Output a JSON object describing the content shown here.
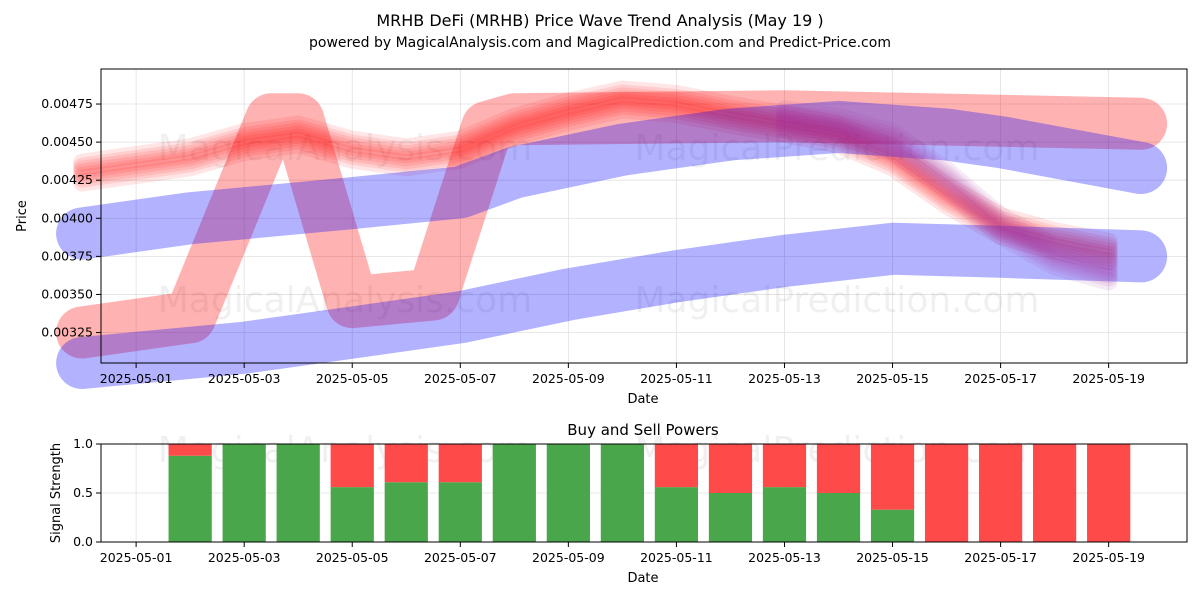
{
  "title": "MRHB DeFi (MRHB) Price Wave Trend Analysis (May 19 )",
  "subtitle": "powered by MagicalAnalysis.com and MagicalPrediction.com and Predict-Price.com",
  "watermarks": [
    "MagicalAnalysis.com",
    "MagicalPrediction.com"
  ],
  "colors": {
    "red": "#ff0000",
    "blue": "#0000ff",
    "buy": "#4aa64a",
    "sell": "#ff4a4a"
  },
  "chart_data": [
    {
      "type": "line",
      "xlabel": "Date",
      "ylabel": "Price",
      "xlim": [
        "2025-04-30",
        "2025-05-20"
      ],
      "ylim": [
        0.00305,
        0.00498
      ],
      "x_ticks": [
        "2025-05-01",
        "2025-05-03",
        "2025-05-05",
        "2025-05-07",
        "2025-05-09",
        "2025-05-11",
        "2025-05-13",
        "2025-05-15",
        "2025-05-17",
        "2025-05-19"
      ],
      "y_ticks": [
        "0.00325",
        "0.00350",
        "0.00375",
        "0.00400",
        "0.00425",
        "0.00450",
        "0.00475"
      ],
      "grid": true,
      "series": [
        {
          "color": "#ff0000",
          "style": "wave",
          "x": [
            "2025-04-30",
            "2025-05-02",
            "2025-05-03",
            "2025-05-04",
            "2025-05-05",
            "2025-05-06",
            "2025-05-07",
            "2025-05-08",
            "2025-05-09",
            "2025-05-10",
            "2025-05-11",
            "2025-05-12",
            "2025-05-13",
            "2025-05-14",
            "2025-05-15",
            "2025-05-16",
            "2025-05-17",
            "2025-05-18",
            "2025-05-19"
          ],
          "y": [
            0.0043,
            0.0044,
            0.0045,
            0.00455,
            0.00445,
            0.0044,
            0.00445,
            0.0046,
            0.0047,
            0.00478,
            0.00475,
            0.00468,
            0.00462,
            0.00455,
            0.0044,
            0.00415,
            0.00395,
            0.00385,
            0.00378
          ]
        },
        {
          "color": "#ff0000",
          "style": "band",
          "x": [
            "2025-04-30",
            "2025-05-02",
            "2025-05-03.5",
            "2025-05-04",
            "2025-05-05",
            "2025-05-06.5",
            "2025-05-07.5",
            "2025-05-08",
            "2025-05-13",
            "2025-05-19.6"
          ],
          "y": [
            0.00325,
            0.00335,
            0.00465,
            0.00465,
            0.00345,
            0.0035,
            0.0046,
            0.00465,
            0.00467,
            0.00462
          ]
        },
        {
          "color": "#0000ff",
          "style": "band",
          "x": [
            "2025-04-30",
            "2025-05-02",
            "2025-05-05",
            "2025-05-07",
            "2025-05-08",
            "2025-05-10",
            "2025-05-12",
            "2025-05-14",
            "2025-05-16",
            "2025-05-17",
            "2025-05-19.6"
          ],
          "y": [
            0.0039,
            0.004,
            0.0041,
            0.00417,
            0.0043,
            0.00445,
            0.00455,
            0.0046,
            0.00455,
            0.0045,
            0.00433
          ]
        },
        {
          "color": "#0000ff",
          "style": "band",
          "x": [
            "2025-04-30",
            "2025-05-03",
            "2025-05-07",
            "2025-05-09",
            "2025-05-11",
            "2025-05-13",
            "2025-05-15",
            "2025-05-17",
            "2025-05-19.6"
          ],
          "y": [
            0.00305,
            0.00315,
            0.00335,
            0.0035,
            0.00362,
            0.00372,
            0.0038,
            0.00378,
            0.00375
          ]
        },
        {
          "color": "#aa3399",
          "style": "wave",
          "x": [
            "2025-05-13",
            "2025-05-14",
            "2025-05-15",
            "2025-05-16",
            "2025-05-17",
            "2025-05-18",
            "2025-05-19"
          ],
          "y": [
            0.00465,
            0.0046,
            0.0045,
            0.00425,
            0.00395,
            0.00375,
            0.00365
          ]
        }
      ]
    },
    {
      "type": "bar",
      "title": "Buy and Sell Powers",
      "xlabel": "Date",
      "ylabel": "Signal Strength",
      "ylim": [
        0,
        1.0
      ],
      "y_ticks": [
        "0.0",
        "0.5",
        "1.0"
      ],
      "x_ticks": [
        "2025-05-01",
        "2025-05-03",
        "2025-05-05",
        "2025-05-07",
        "2025-05-09",
        "2025-05-11",
        "2025-05-13",
        "2025-05-15",
        "2025-05-17",
        "2025-05-19"
      ],
      "categories": [
        "2025-05-02",
        "2025-05-03",
        "2025-05-04",
        "2025-05-05",
        "2025-05-06",
        "2025-05-07",
        "2025-05-08",
        "2025-05-09",
        "2025-05-10",
        "2025-05-11",
        "2025-05-12",
        "2025-05-13",
        "2025-05-14",
        "2025-05-15",
        "2025-05-16",
        "2025-05-17",
        "2025-05-18",
        "2025-05-19"
      ],
      "series": [
        {
          "name": "Buy",
          "color": "#4aa64a",
          "values": [
            0.88,
            1.0,
            1.0,
            0.56,
            0.61,
            0.61,
            1.0,
            1.0,
            1.0,
            0.56,
            0.5,
            0.56,
            0.5,
            0.33,
            0.0,
            0.0,
            0.0,
            0.0
          ]
        },
        {
          "name": "Sell",
          "color": "#ff4a4a",
          "values": [
            0.12,
            0.0,
            0.0,
            0.44,
            0.39,
            0.39,
            0.0,
            0.0,
            0.0,
            0.44,
            0.5,
            0.44,
            0.5,
            0.67,
            1.0,
            1.0,
            1.0,
            1.0
          ]
        }
      ]
    }
  ]
}
